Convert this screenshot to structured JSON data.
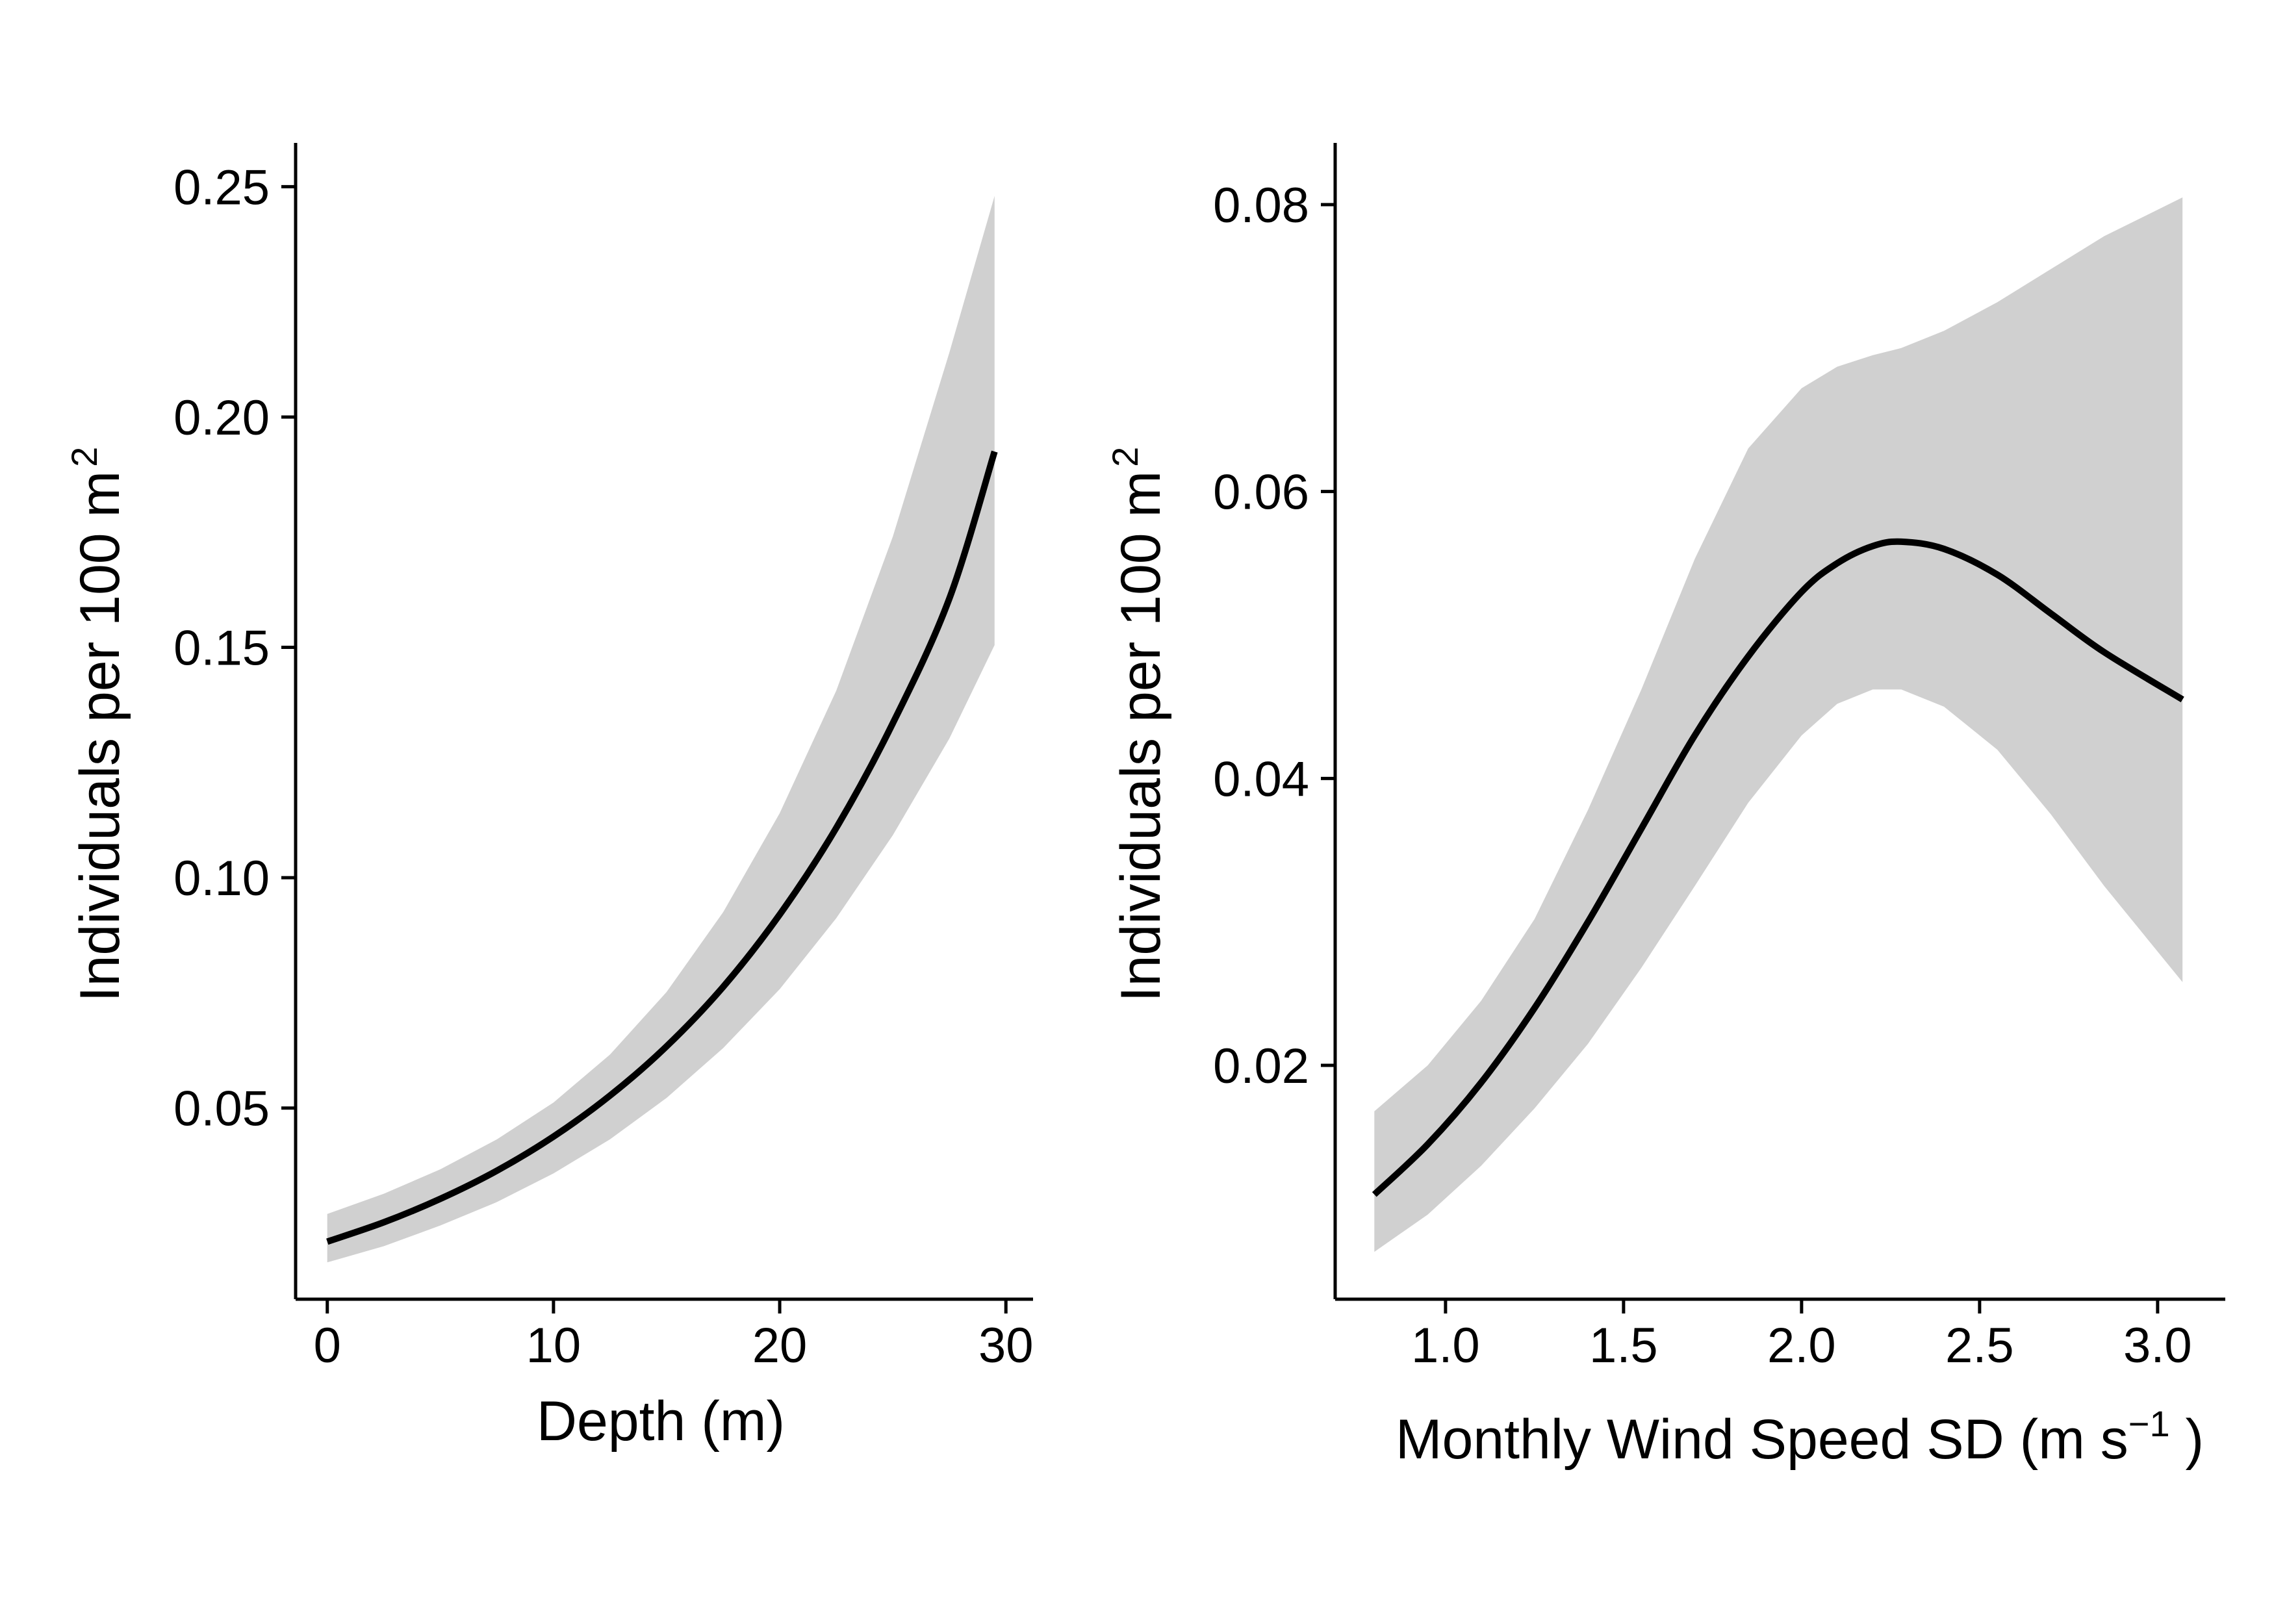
{
  "chart_data": [
    {
      "type": "line",
      "title": "",
      "xlabel": "Depth (m)",
      "ylabel": "Individuals per 100 m",
      "ylabel_sup": "2",
      "xlim": [
        -1.4,
        31.2
      ],
      "ylim": [
        0.0085,
        0.2595
      ],
      "xticks": [
        0,
        10,
        20,
        30
      ],
      "xtick_labels": [
        "0",
        "10",
        "20",
        "30"
      ],
      "yticks": [
        0.05,
        0.1,
        0.15,
        0.2,
        0.25
      ],
      "ytick_labels": [
        "0.05",
        "0.10",
        "0.15",
        "0.20",
        "0.25"
      ],
      "grid": false,
      "band_color": "#d0d0d0",
      "line_color": "#000000",
      "series": [
        {
          "x": [
            0,
            2.5,
            5,
            7.5,
            10,
            12.5,
            15,
            17.5,
            20,
            22.5,
            25,
            27.5,
            29.5
          ],
          "y": [
            0.021,
            0.0252,
            0.0303,
            0.0364,
            0.0438,
            0.0527,
            0.0634,
            0.0763,
            0.092,
            0.1108,
            0.1335,
            0.1606,
            0.1925
          ],
          "lower": [
            0.0165,
            0.02,
            0.0245,
            0.0296,
            0.0358,
            0.0432,
            0.0522,
            0.063,
            0.0758,
            0.0912,
            0.1092,
            0.1302,
            0.1505
          ],
          "upper": [
            0.027,
            0.0314,
            0.0367,
            0.0432,
            0.0512,
            0.0616,
            0.0752,
            0.0925,
            0.114,
            0.1406,
            0.174,
            0.214,
            0.248
          ]
        }
      ]
    },
    {
      "type": "line",
      "title": "",
      "xlabel": "Monthly Wind Speed SD (m s",
      "xlabel_sup": "−1",
      "xlabel_end": " )",
      "ylabel": "Individuals per 100 m",
      "ylabel_sup": "2",
      "xlim": [
        0.69,
        3.19
      ],
      "ylim": [
        0.0037,
        0.0843
      ],
      "xticks": [
        1.0,
        1.5,
        2.0,
        2.5,
        3.0
      ],
      "xtick_labels": [
        "1.0",
        "1.5",
        "2.0",
        "2.5",
        "3.0"
      ],
      "yticks": [
        0.02,
        0.04,
        0.06,
        0.08
      ],
      "ytick_labels": [
        "0.02",
        "0.04",
        "0.06",
        "0.08"
      ],
      "grid": false,
      "band_color": "#d0d0d0",
      "line_color": "#000000",
      "series": [
        {
          "x": [
            0.8,
            0.95,
            1.1,
            1.25,
            1.4,
            1.55,
            1.7,
            1.85,
            2.0,
            2.1,
            2.2,
            2.28,
            2.4,
            2.55,
            2.7,
            2.85,
            3.07
          ],
          "y": [
            0.011,
            0.0145,
            0.0188,
            0.024,
            0.03,
            0.0365,
            0.043,
            0.0485,
            0.053,
            0.055,
            0.0562,
            0.0565,
            0.056,
            0.0542,
            0.0515,
            0.0488,
            0.0455
          ],
          "lower": [
            0.007,
            0.0096,
            0.013,
            0.017,
            0.0215,
            0.0268,
            0.0325,
            0.0383,
            0.043,
            0.0452,
            0.0462,
            0.0462,
            0.045,
            0.042,
            0.0375,
            0.0325,
            0.0258
          ],
          "upper": [
            0.0168,
            0.02,
            0.0245,
            0.0302,
            0.0378,
            0.0462,
            0.0553,
            0.063,
            0.0672,
            0.0687,
            0.0695,
            0.07,
            0.0712,
            0.0732,
            0.0755,
            0.0778,
            0.0805
          ]
        }
      ]
    }
  ]
}
